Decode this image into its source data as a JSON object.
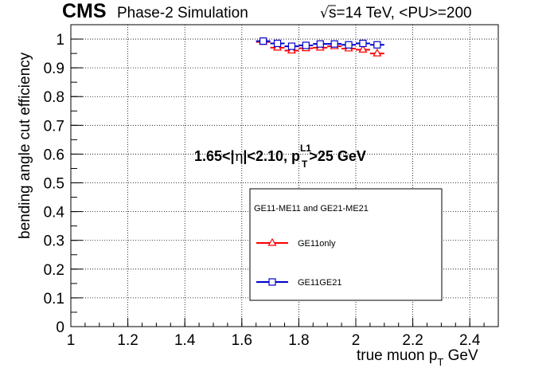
{
  "header": {
    "cms": "CMS",
    "simulation": "Phase-2 Simulation",
    "sqrt_symbol": "√",
    "energy": "s=14 TeV, <PU>=200"
  },
  "annotation": {
    "prefix": "1.65<|",
    "eta": "η",
    "mid": "|<2.10, p",
    "sup": "L1",
    "sub": "T",
    "suffix": ">25 GeV"
  },
  "chart_data": {
    "type": "scatter",
    "xlabel": "true muon p",
    "xlabel_sub": "T",
    "xlabel_unit": " GeV",
    "ylabel": "bending angle cut efficiency",
    "xlim": [
      1.0,
      2.5
    ],
    "ylim": [
      0.0,
      1.05
    ],
    "x_ticks": [
      1,
      1.2,
      1.4,
      1.6,
      1.8,
      2,
      2.2,
      2.4
    ],
    "y_ticks": [
      0,
      0.1,
      0.2,
      0.3,
      0.4,
      0.5,
      0.6,
      0.7,
      0.8,
      0.9,
      1
    ],
    "x_tick_labels": [
      "1",
      "1.2",
      "1.4",
      "1.6",
      "1.8",
      "2",
      "2.2",
      "2.4"
    ],
    "y_tick_labels": [
      "0",
      "0.1",
      "0.2",
      "0.3",
      "0.4",
      "0.5",
      "0.6",
      "0.7",
      "0.8",
      "0.9",
      "1"
    ],
    "grid": true,
    "legend": {
      "header": "GE11-ME11 and GE21-ME21",
      "position": "center-right"
    },
    "series": [
      {
        "name": "GE11only",
        "color": "#ff0000",
        "marker": "open-triangle",
        "x": [
          1.675,
          1.725,
          1.775,
          1.825,
          1.875,
          1.925,
          1.975,
          2.025,
          2.075
        ],
        "y": [
          0.99,
          0.97,
          0.96,
          0.968,
          0.97,
          0.975,
          0.967,
          0.963,
          0.95
        ],
        "xerr": 0.025
      },
      {
        "name": "GE11GE21",
        "color": "#0000cc",
        "marker": "open-square",
        "x": [
          1.675,
          1.725,
          1.775,
          1.825,
          1.875,
          1.925,
          1.975,
          2.025,
          2.075
        ],
        "y": [
          0.993,
          0.985,
          0.975,
          0.978,
          0.983,
          0.983,
          0.98,
          0.985,
          0.98
        ],
        "xerr": 0.025
      }
    ]
  }
}
